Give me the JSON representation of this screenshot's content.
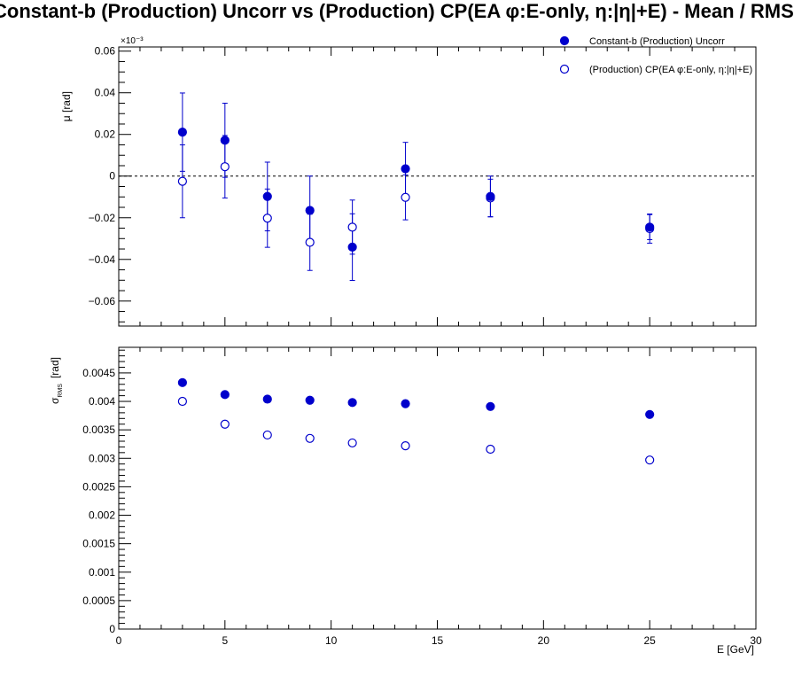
{
  "title": "Constant-b (Production) Uncorr vs (Production) CP(EA φ:E-only, η:|η|+E)  -  Mean / RMS",
  "colors": {
    "series": "#0000cc",
    "axis": "#000000",
    "background": "#ffffff"
  },
  "chart_data": [
    {
      "type": "scatter",
      "panel": "top",
      "ylabel": "μ  [rad]",
      "y_exponent_label": "×10⁻³",
      "xlim": [
        0,
        30
      ],
      "ylim": [
        -0.072,
        0.062
      ],
      "y_ticks": [
        -0.06,
        -0.04,
        -0.02,
        0,
        0.02,
        0.04,
        0.06
      ],
      "y_tick_labels": [
        "−0.06",
        "−0.04",
        "−0.02",
        "0",
        "0.02",
        "0.04",
        "0.06"
      ],
      "reference_line": {
        "y": 0,
        "style": "dashed"
      },
      "legend_position": "top-right",
      "x": [
        3,
        5,
        7,
        9,
        11,
        13.5,
        17.5,
        25
      ],
      "series": [
        {
          "name": "Constant-b (Production) Uncorr",
          "marker": "filled-circle",
          "values": [
            0.0211,
            0.0172,
            -0.0098,
            -0.0165,
            -0.0341,
            0.0035,
            -0.0098,
            -0.0245
          ],
          "errors": [
            0.0188,
            0.0178,
            0.0165,
            0.0165,
            0.016,
            0.0127,
            0.0098,
            0.006
          ]
        },
        {
          "name": "(Production) CP(EA φ:E-only, η:|η|+E)",
          "marker": "open-circle",
          "values": [
            -0.0025,
            0.0045,
            -0.0202,
            -0.0318,
            -0.0245,
            -0.0102,
            -0.0105,
            -0.0252
          ],
          "errors": [
            0.0175,
            0.015,
            0.014,
            0.0135,
            0.013,
            0.0108,
            0.009,
            0.007
          ]
        }
      ]
    },
    {
      "type": "scatter",
      "panel": "bottom",
      "xlabel": "E  [GeV]",
      "ylabel": "σ",
      "ylabel_subscript": "RMS",
      "ylabel_unit": "[rad]",
      "xlim": [
        0,
        30
      ],
      "ylim": [
        0,
        0.00495
      ],
      "x_ticks": [
        0,
        5,
        10,
        15,
        20,
        25,
        30
      ],
      "x_tick_labels": [
        "0",
        "5",
        "10",
        "15",
        "20",
        "25",
        "30"
      ],
      "y_ticks": [
        0,
        0.0005,
        0.001,
        0.0015,
        0.002,
        0.0025,
        0.003,
        0.0035,
        0.004,
        0.0045
      ],
      "y_tick_labels": [
        "0",
        "0.0005",
        "0.001",
        "0.0015",
        "0.002",
        "0.0025",
        "0.003",
        "0.0035",
        "0.004",
        "0.0045"
      ],
      "x": [
        3,
        5,
        7,
        9,
        11,
        13.5,
        17.5,
        25
      ],
      "series": [
        {
          "name": "Constant-b (Production) Uncorr",
          "marker": "filled-circle",
          "values": [
            0.00433,
            0.00412,
            0.00404,
            0.00402,
            0.00398,
            0.00396,
            0.00391,
            0.00377
          ]
        },
        {
          "name": "(Production) CP(EA φ:E-only, η:|η|+E)",
          "marker": "open-circle",
          "values": [
            0.004,
            0.0036,
            0.00341,
            0.00335,
            0.00327,
            0.00322,
            0.00316,
            0.00297
          ]
        }
      ]
    }
  ]
}
